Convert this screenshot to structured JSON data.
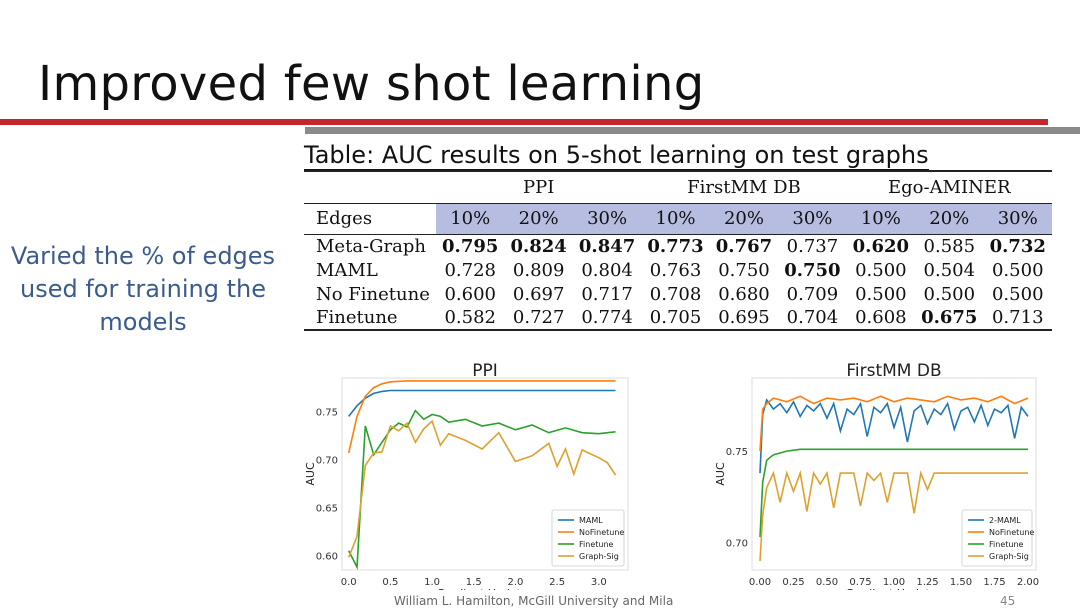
{
  "slide": {
    "title": "Improved few shot learning",
    "side_text": "Varied the % of edges used for training the models",
    "footer": "William L. Hamilton, McGill University and Mila",
    "page_number": "45"
  },
  "table": {
    "caption": "Table: AUC results on 5-shot learning on test graphs",
    "groups": [
      "PPI",
      "FirstMM DB",
      "Ego-AMINER"
    ],
    "row_header": "Edges",
    "percents": [
      "10%",
      "20%",
      "30%",
      "10%",
      "20%",
      "30%",
      "10%",
      "20%",
      "30%"
    ],
    "rows": [
      {
        "label": "Meta-Graph",
        "values": [
          "0.795",
          "0.824",
          "0.847",
          "0.773",
          "0.767",
          "0.737",
          "0.620",
          "0.585",
          "0.732"
        ],
        "bold": [
          true,
          true,
          true,
          true,
          true,
          false,
          true,
          false,
          true
        ]
      },
      {
        "label": "MAML",
        "values": [
          "0.728",
          "0.809",
          "0.804",
          "0.763",
          "0.750",
          "0.750",
          "0.500",
          "0.504",
          "0.500"
        ],
        "bold": [
          false,
          false,
          false,
          false,
          false,
          true,
          false,
          false,
          false
        ]
      },
      {
        "label": "No Finetune",
        "values": [
          "0.600",
          "0.697",
          "0.717",
          "0.708",
          "0.680",
          "0.709",
          "0.500",
          "0.500",
          "0.500"
        ],
        "bold": [
          false,
          false,
          false,
          false,
          false,
          false,
          false,
          false,
          false
        ]
      },
      {
        "label": "Finetune",
        "values": [
          "0.582",
          "0.727",
          "0.774",
          "0.705",
          "0.695",
          "0.704",
          "0.608",
          "0.675",
          "0.713"
        ],
        "bold": [
          false,
          false,
          false,
          false,
          false,
          false,
          false,
          true,
          false
        ]
      }
    ]
  },
  "colors": {
    "blue": "#1f77b4",
    "orange": "#ff7f0e",
    "green": "#2ca02c",
    "gold": "#e0a030",
    "highlight": "#b7bde0",
    "title_red": "#c1272d"
  },
  "chart_data": [
    {
      "type": "line",
      "title": "PPI",
      "xlabel": "Gradient Updates",
      "ylabel": "AUC",
      "xlim": [
        -0.08,
        3.35
      ],
      "ylim": [
        0.585,
        0.785
      ],
      "xticks": [
        "0.0",
        "0.5",
        "1.0",
        "1.5",
        "2.0",
        "2.5",
        "3.0"
      ],
      "yticks": [
        "0.60",
        "0.65",
        "0.70",
        "0.75"
      ],
      "legend_position": "lower-right",
      "series": [
        {
          "name": "MAML",
          "color": "#1f77b4",
          "x": [
            0,
            0.1,
            0.2,
            0.3,
            0.4,
            0.5,
            0.7,
            1.0,
            1.5,
            2.0,
            2.5,
            3.2
          ],
          "y": [
            0.745,
            0.756,
            0.764,
            0.769,
            0.771,
            0.772,
            0.772,
            0.772,
            0.772,
            0.772,
            0.772,
            0.772
          ]
        },
        {
          "name": "NoFinetune",
          "color": "#ff7f0e",
          "x": [
            0,
            0.1,
            0.2,
            0.3,
            0.4,
            0.5,
            0.7,
            1.0,
            1.5,
            2.0,
            2.5,
            3.2
          ],
          "y": [
            0.707,
            0.745,
            0.766,
            0.775,
            0.779,
            0.781,
            0.782,
            0.782,
            0.782,
            0.782,
            0.782,
            0.782
          ]
        },
        {
          "name": "Finetune",
          "color": "#2ca02c",
          "x": [
            0,
            0.1,
            0.2,
            0.3,
            0.4,
            0.5,
            0.6,
            0.7,
            0.8,
            0.9,
            1.0,
            1.1,
            1.2,
            1.4,
            1.6,
            1.8,
            2.0,
            2.2,
            2.4,
            2.6,
            2.8,
            3.0,
            3.2
          ],
          "y": [
            0.605,
            0.588,
            0.735,
            0.705,
            0.718,
            0.731,
            0.738,
            0.734,
            0.751,
            0.742,
            0.747,
            0.745,
            0.739,
            0.742,
            0.735,
            0.738,
            0.731,
            0.736,
            0.728,
            0.733,
            0.728,
            0.727,
            0.729
          ]
        },
        {
          "name": "Graph-Sig",
          "color": "#e0a030",
          "x": [
            0,
            0.1,
            0.2,
            0.3,
            0.4,
            0.5,
            0.6,
            0.7,
            0.8,
            0.9,
            1.0,
            1.1,
            1.2,
            1.4,
            1.6,
            1.8,
            2.0,
            2.2,
            2.4,
            2.5,
            2.6,
            2.7,
            2.8,
            3.0,
            3.1,
            3.2
          ],
          "y": [
            0.598,
            0.62,
            0.694,
            0.707,
            0.708,
            0.735,
            0.73,
            0.738,
            0.718,
            0.732,
            0.74,
            0.715,
            0.727,
            0.72,
            0.711,
            0.728,
            0.698,
            0.704,
            0.717,
            0.693,
            0.711,
            0.685,
            0.71,
            0.702,
            0.697,
            0.684
          ]
        }
      ]
    },
    {
      "type": "line",
      "title": "FirstMM DB",
      "xlabel": "Gradient Updates",
      "ylabel": "AUC",
      "xlim": [
        -0.06,
        2.06
      ],
      "ylim": [
        0.685,
        0.79
      ],
      "xticks": [
        "0.00",
        "0.25",
        "0.50",
        "0.75",
        "1.00",
        "1.25",
        "1.50",
        "1.75",
        "2.00"
      ],
      "yticks": [
        "0.70",
        "0.75"
      ],
      "legend_position": "lower-right",
      "series": [
        {
          "name": "2-MAML",
          "color": "#1f77b4",
          "x": [
            0,
            0.02,
            0.05,
            0.1,
            0.15,
            0.2,
            0.25,
            0.3,
            0.35,
            0.4,
            0.45,
            0.5,
            0.55,
            0.6,
            0.65,
            0.7,
            0.75,
            0.8,
            0.85,
            0.9,
            0.95,
            1.0,
            1.05,
            1.1,
            1.15,
            1.2,
            1.25,
            1.3,
            1.35,
            1.4,
            1.45,
            1.5,
            1.55,
            1.6,
            1.65,
            1.7,
            1.75,
            1.8,
            1.85,
            1.9,
            1.95,
            2.0
          ],
          "y": [
            0.738,
            0.77,
            0.778,
            0.773,
            0.776,
            0.771,
            0.777,
            0.769,
            0.775,
            0.772,
            0.776,
            0.768,
            0.776,
            0.761,
            0.773,
            0.77,
            0.776,
            0.758,
            0.774,
            0.771,
            0.776,
            0.763,
            0.774,
            0.755,
            0.772,
            0.775,
            0.765,
            0.773,
            0.77,
            0.776,
            0.762,
            0.772,
            0.774,
            0.766,
            0.775,
            0.764,
            0.773,
            0.771,
            0.775,
            0.757,
            0.774,
            0.769
          ]
        },
        {
          "name": "NoFinetune",
          "color": "#ff7f0e",
          "x": [
            0,
            0.02,
            0.05,
            0.1,
            0.2,
            0.3,
            0.4,
            0.5,
            0.6,
            0.7,
            0.8,
            0.9,
            1.0,
            1.1,
            1.2,
            1.3,
            1.4,
            1.5,
            1.6,
            1.7,
            1.8,
            1.9,
            2.0
          ],
          "y": [
            0.75,
            0.773,
            0.776,
            0.779,
            0.777,
            0.78,
            0.776,
            0.779,
            0.778,
            0.779,
            0.777,
            0.78,
            0.777,
            0.779,
            0.778,
            0.777,
            0.78,
            0.778,
            0.779,
            0.777,
            0.78,
            0.776,
            0.779
          ]
        },
        {
          "name": "Finetune",
          "color": "#2ca02c",
          "x": [
            0,
            0.02,
            0.05,
            0.1,
            0.2,
            0.3,
            0.4,
            0.5,
            0.6,
            0.8,
            1.0,
            1.2,
            1.4,
            1.6,
            1.8,
            2.0
          ],
          "y": [
            0.703,
            0.733,
            0.745,
            0.748,
            0.75,
            0.751,
            0.751,
            0.751,
            0.751,
            0.751,
            0.751,
            0.751,
            0.751,
            0.751,
            0.751,
            0.751
          ]
        },
        {
          "name": "Graph-Sig",
          "color": "#e0a030",
          "x": [
            0,
            0.02,
            0.05,
            0.1,
            0.15,
            0.2,
            0.25,
            0.3,
            0.35,
            0.4,
            0.45,
            0.5,
            0.55,
            0.6,
            0.65,
            0.7,
            0.75,
            0.8,
            0.85,
            0.9,
            0.95,
            1.0,
            1.05,
            1.1,
            1.15,
            1.2,
            1.25,
            1.3,
            1.4,
            1.5,
            1.6,
            1.7,
            1.8,
            1.9,
            2.0
          ],
          "y": [
            0.69,
            0.715,
            0.73,
            0.738,
            0.722,
            0.738,
            0.728,
            0.738,
            0.717,
            0.738,
            0.732,
            0.738,
            0.719,
            0.738,
            0.738,
            0.738,
            0.72,
            0.738,
            0.734,
            0.738,
            0.722,
            0.738,
            0.738,
            0.738,
            0.716,
            0.738,
            0.729,
            0.738,
            0.738,
            0.738,
            0.738,
            0.738,
            0.738,
            0.738,
            0.738
          ]
        }
      ]
    }
  ]
}
